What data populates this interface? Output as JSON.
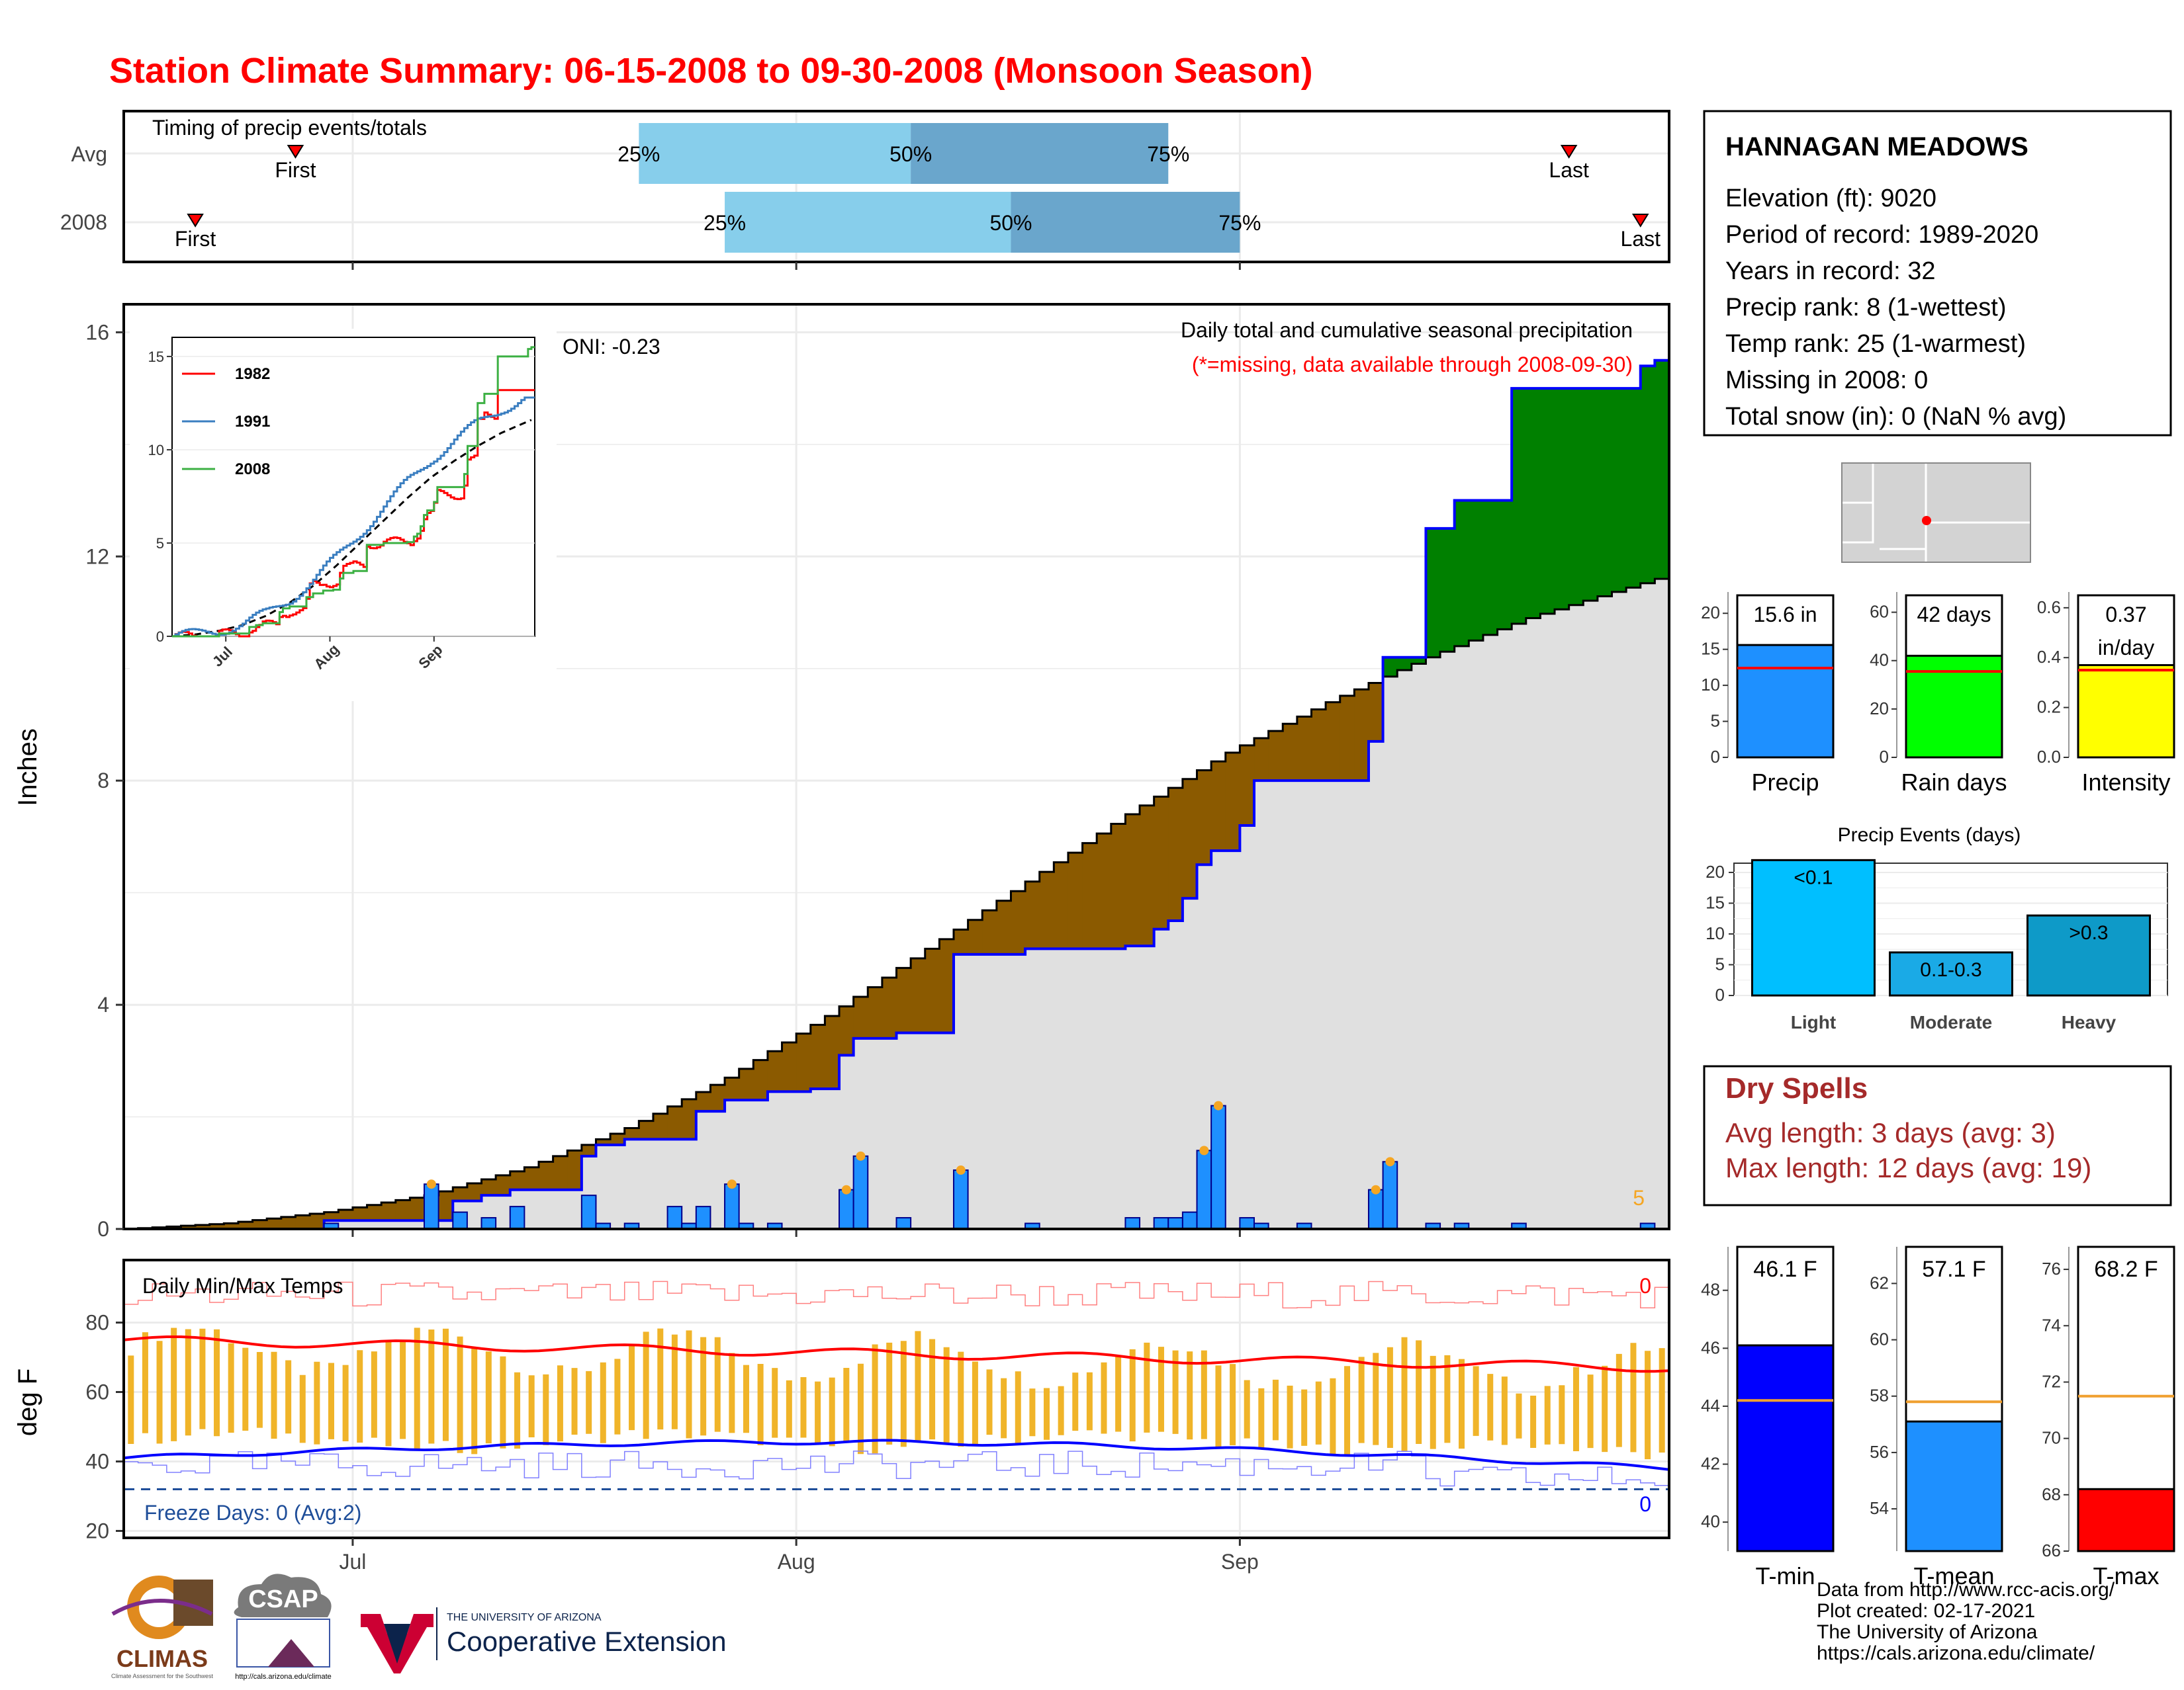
{
  "title": "Station Climate Summary: 06-15-2008 to 09-30-2008 (Monsoon Season)",
  "colors": {
    "title": "#ff0000",
    "precip_fill_above": "#008000",
    "precip_fill_below": "#8b5a00",
    "normal_fill": "#e0e0e0",
    "cum_line": "#0000ff",
    "daily_bar": "#1e90ff",
    "timing_light": "#87ceeb",
    "timing_dark": "#6aa6cc",
    "tmax": "#ff0000",
    "tmin": "#0000ff",
    "temp_range": "#f0b429",
    "freeze": "#1f4e99"
  },
  "timing": {
    "label": "Timing of precip events/totals",
    "rows": [
      {
        "name": "Avg",
        "first": "Jun 27",
        "p25": "Jul 21",
        "p50": "Aug 9",
        "p75": "Aug 27",
        "last": "Sep 24"
      },
      {
        "name": "2008",
        "first": "Jun 20",
        "p25": "Jul 27",
        "p50": "Aug 16",
        "p75": "Sep 1",
        "last": "Sep 29"
      }
    ],
    "first_label": "First",
    "last_label": "Last",
    "p25_label": "25%",
    "p50_label": "50%",
    "p75_label": "75%"
  },
  "main": {
    "ylabel": "Inches",
    "yticks": [
      "0",
      "4",
      "8",
      "12",
      "16"
    ],
    "ylim": [
      0,
      16.5
    ],
    "oni": "ONI: -0.23",
    "caption": "Daily total and cumulative seasonal precipitation",
    "missing_note": "(*=missing, data available through 2008-09-30)",
    "daily_scale_label": "5"
  },
  "inset": {
    "yticks": [
      "0",
      "5",
      "10",
      "15"
    ],
    "xticks": [
      "Jul",
      "Aug",
      "Sep"
    ],
    "legend": [
      {
        "name": "1982",
        "color": "#ff0000"
      },
      {
        "name": "1991",
        "color": "#3a7ec0"
      },
      {
        "name": "2008",
        "color": "#3cb043"
      }
    ]
  },
  "temp": {
    "label": "Daily Min/Max Temps",
    "ylabel": "deg F",
    "yticks": [
      "20",
      "40",
      "60",
      "80"
    ],
    "ylim": [
      18,
      98
    ],
    "freeze_label": "Freeze Days: 0 (Avg:2)",
    "count_top": "0",
    "count_bottom": "0",
    "freeze_line": 32
  },
  "x_axis": {
    "ticks": [
      "Jul",
      "Aug",
      "Sep"
    ]
  },
  "station": {
    "name": "HANNAGAN MEADOWS",
    "lines": [
      "Elevation (ft): 9020",
      "Period of record: 1989-2020",
      "Years in record: 32",
      "Precip rank: 8 (1-wettest)",
      "Temp rank: 25 (1-warmest)",
      "Missing in 2008: 0",
      "Total snow (in): 0 (NaN % avg)"
    ]
  },
  "summary_bars": [
    {
      "label": "Precip",
      "value_label": "15.6 in",
      "value": 15.6,
      "avg": 12.4,
      "yticks": [
        "0",
        "5",
        "10",
        "15",
        "20"
      ],
      "ymax": 22.5,
      "color": "#1e90ff"
    },
    {
      "label": "Rain days",
      "value_label": "42 days",
      "value": 42,
      "avg": 35.5,
      "yticks": [
        "0",
        "20",
        "40",
        "60"
      ],
      "ymax": 67,
      "color": "#00ff00"
    },
    {
      "label": "Intensity",
      "value_label": "0.37\nin/day",
      "value": 0.37,
      "avg": 0.35,
      "yticks": [
        "0.0",
        "0.2",
        "0.4",
        "0.6"
      ],
      "ymax": 0.65,
      "color": "#ffff00"
    }
  ],
  "events": {
    "title": "Precip Events (days)",
    "yticks": [
      "0",
      "5",
      "10",
      "15",
      "20"
    ],
    "categories": [
      "Light",
      "Moderate",
      "Heavy"
    ],
    "value_labels": [
      "<0.1",
      "0.1-0.3",
      ">0.3"
    ],
    "values": [
      22,
      7,
      13
    ],
    "colors": [
      "#00bfff",
      "#1aaae6",
      "#0e9ac8"
    ]
  },
  "dry_spells": {
    "title": "Dry Spells",
    "avg": "Avg length: 3 days (avg: 3)",
    "max": "Max length: 12 days (avg: 19)"
  },
  "temp_bars": [
    {
      "label": "T-min",
      "value_label": "46.1 F",
      "value": 46.1,
      "avg": 44.2,
      "yticks": [
        "40",
        "42",
        "44",
        "46",
        "48"
      ],
      "ymin": 39,
      "ymax": 49.5,
      "color": "#0000ff"
    },
    {
      "label": "T-mean",
      "value_label": "57.1 F",
      "value": 57.1,
      "avg": 57.8,
      "yticks": [
        "54",
        "56",
        "58",
        "60",
        "62"
      ],
      "ymin": 52.5,
      "ymax": 63.3,
      "color": "#1e90ff"
    },
    {
      "label": "T-max",
      "value_label": "68.2 F",
      "value": 68.2,
      "avg": 71.5,
      "yticks": [
        "66",
        "68",
        "70",
        "72",
        "74",
        "76"
      ],
      "ymin": 66,
      "ymax": 76.8,
      "color": "#ff0000"
    }
  ],
  "logos": {
    "climas": "CLIMAS",
    "climas_small": "Climate Assessment for the Southwest",
    "csap": "CSAP",
    "csap_url": "http://cals.arizona.edu/climate",
    "ua_top": "THE UNIVERSITY OF ARIZONA",
    "ua_bottom": "Cooperative Extension"
  },
  "credits": [
    "Data from http://www.rcc-acis.org/",
    "Plot created: 02-17-2021",
    "The University of Arizona",
    "https://cals.arizona.edu/climate/"
  ],
  "chart_data": {
    "type": "area",
    "title": "Station Climate Summary: 06-15-2008 to 09-30-2008 (Monsoon Season)",
    "xlabel": "",
    "ylabel": "Inches",
    "x_start": "2008-06-15",
    "x_end": "2008-09-30",
    "ylim": [
      0,
      16.5
    ],
    "series": [
      {
        "name": "2008",
        "x": [
          "2008-06-15",
          "2008-06-29",
          "2008-07-06",
          "2008-07-08",
          "2008-07-10",
          "2008-07-12",
          "2008-07-17",
          "2008-07-18",
          "2008-07-20",
          "2008-07-23",
          "2008-07-25",
          "2008-07-27",
          "2008-07-28",
          "2008-07-30",
          "2008-08-02",
          "2008-08-04",
          "2008-08-05",
          "2008-08-08",
          "2008-08-09",
          "2008-08-12",
          "2008-08-17",
          "2008-08-24",
          "2008-08-26",
          "2008-08-27",
          "2008-08-28",
          "2008-08-29",
          "2008-08-30",
          "2008-09-01",
          "2008-09-02",
          "2008-09-05",
          "2008-09-10",
          "2008-09-11",
          "2008-09-14",
          "2008-09-16",
          "2008-09-20",
          "2008-09-29",
          "2008-09-30"
        ],
        "values": [
          0.0,
          0.15,
          0.15,
          0.5,
          0.6,
          0.7,
          1.3,
          1.5,
          1.6,
          1.6,
          2.1,
          2.3,
          2.3,
          2.45,
          2.5,
          3.1,
          3.4,
          3.5,
          3.5,
          4.9,
          5.0,
          5.05,
          5.35,
          5.5,
          5.9,
          6.5,
          6.75,
          7.2,
          8.0,
          8.0,
          8.7,
          10.2,
          12.5,
          13.0,
          15.0,
          15.4,
          15.5
        ]
      },
      {
        "name": "Avg",
        "x": [
          "2008-06-15",
          "2008-06-22",
          "2008-06-29",
          "2008-07-06",
          "2008-07-13",
          "2008-07-20",
          "2008-07-27",
          "2008-08-03",
          "2008-08-10",
          "2008-08-17",
          "2008-08-24",
          "2008-08-31",
          "2008-09-07",
          "2008-09-14",
          "2008-09-21",
          "2008-09-30"
        ],
        "values": [
          0.0,
          0.1,
          0.3,
          0.6,
          1.1,
          1.8,
          2.7,
          3.8,
          5.0,
          6.2,
          7.4,
          8.5,
          9.4,
          10.2,
          10.9,
          11.6
        ]
      }
    ],
    "daily_bars": {
      "x": [
        "2008-06-29",
        "2008-07-06",
        "2008-07-08",
        "2008-07-10",
        "2008-07-12",
        "2008-07-17",
        "2008-07-18",
        "2008-07-20",
        "2008-07-23",
        "2008-07-24",
        "2008-07-25",
        "2008-07-27",
        "2008-07-28",
        "2008-07-30",
        "2008-08-04",
        "2008-08-05",
        "2008-08-08",
        "2008-08-12",
        "2008-08-17",
        "2008-08-24",
        "2008-08-26",
        "2008-08-27",
        "2008-08-28",
        "2008-08-29",
        "2008-08-30",
        "2008-09-01",
        "2008-09-02",
        "2008-09-05",
        "2008-09-10",
        "2008-09-11",
        "2008-09-14",
        "2008-09-16",
        "2008-09-20",
        "2008-09-29"
      ],
      "values": [
        0.1,
        0.8,
        0.3,
        0.2,
        0.4,
        0.6,
        0.1,
        0.1,
        0.4,
        0.1,
        0.4,
        0.8,
        0.1,
        0.1,
        0.7,
        1.3,
        0.2,
        1.05,
        0.1,
        0.2,
        0.2,
        0.2,
        0.3,
        1.4,
        2.2,
        0.2,
        0.1,
        0.1,
        0.7,
        1.2,
        0.1,
        0.1,
        0.1,
        0.1
      ]
    }
  }
}
